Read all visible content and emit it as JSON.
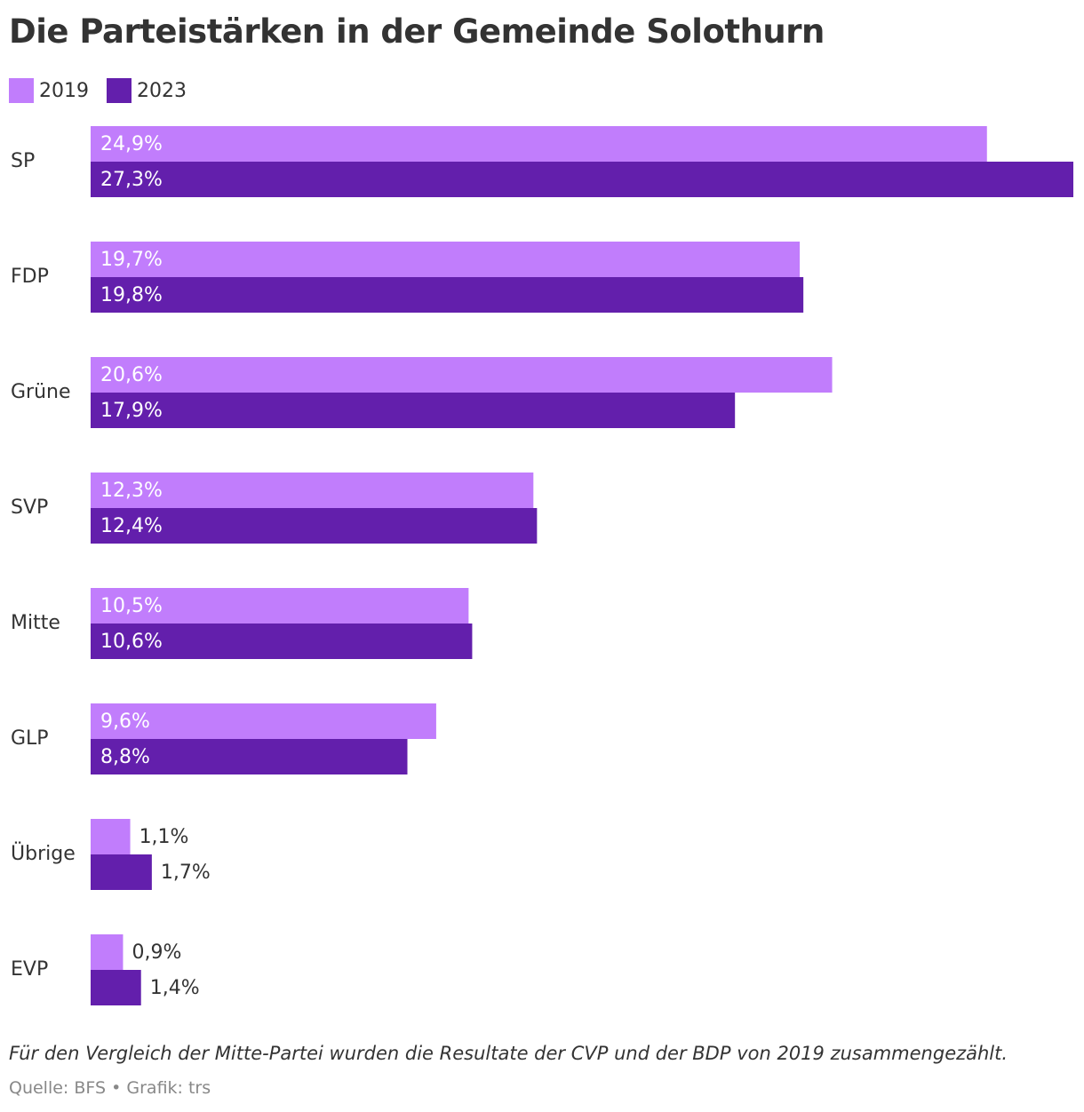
{
  "title": "Die Parteistärken in der Gemeinde Solothurn",
  "note": "Für den Vergleich der Mitte-Partei wurden die Resultate der CVP und der BDP von 2019 zusammengezählt.",
  "source": {
    "prefix": "Quelle: BFS",
    "separator": "•",
    "credit": "Grafik: trs"
  },
  "colors": {
    "series_2019": "#c17dfc",
    "series_2023": "#631fac",
    "label_inside": "#ffffff",
    "label_outside": "#333333"
  },
  "chart_data": {
    "type": "bar",
    "orientation": "horizontal",
    "categories": [
      "SP",
      "FDP",
      "Grüne",
      "SVP",
      "Mitte",
      "GLP",
      "Übrige",
      "EVP"
    ],
    "series": [
      {
        "name": "2019",
        "values": [
          24.9,
          19.7,
          20.6,
          12.3,
          10.5,
          9.6,
          1.1,
          0.9
        ],
        "labels": [
          "24,9%",
          "19,7%",
          "20,6%",
          "12,3%",
          "10,5%",
          "9,6%",
          "1,1%",
          "0,9%"
        ]
      },
      {
        "name": "2023",
        "values": [
          27.3,
          19.8,
          17.9,
          12.4,
          10.6,
          8.8,
          1.7,
          1.4
        ],
        "labels": [
          "27,3%",
          "19,8%",
          "17,9%",
          "12,4%",
          "10,6%",
          "8,8%",
          "1,7%",
          "1,4%"
        ]
      }
    ],
    "legend_position": "top-left",
    "grid": false
  }
}
